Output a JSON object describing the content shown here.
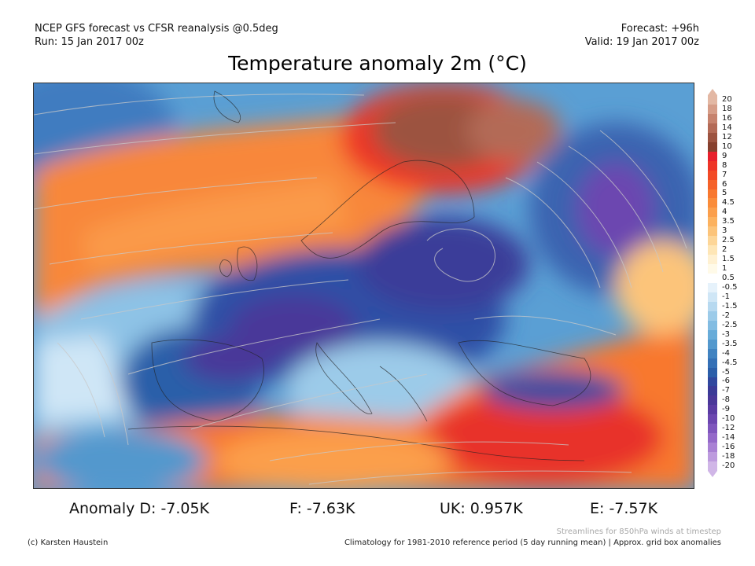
{
  "header": {
    "line1_left": "NCEP GFS forecast vs CFSR reanalysis @0.5deg",
    "line2_left": "Run: 15 Jan 2017 00z",
    "line1_right": "Forecast: +96h",
    "line2_right": "Valid: 19 Jan 2017 00z"
  },
  "title": "Temperature anomaly 2m (°C)",
  "colorbar": {
    "labels": [
      "20",
      "18",
      "16",
      "14",
      "12",
      "10",
      "9",
      "8",
      "7",
      "6",
      "5",
      "4.5",
      "4",
      "3.5",
      "3",
      "2.5",
      "2",
      "1.5",
      "1",
      "0.5",
      "-0.5",
      "-1",
      "-1.5",
      "-2",
      "-2.5",
      "-3",
      "-3.5",
      "-4",
      "-4.5",
      "-5",
      "-6",
      "-7",
      "-8",
      "-9",
      "-10",
      "-12",
      "-14",
      "-16",
      "-18",
      "-20"
    ],
    "colors": [
      "#e3b8a4",
      "#d69d88",
      "#c6826d",
      "#b36a56",
      "#9c5340",
      "#86402e",
      "#e8202c",
      "#ee3427",
      "#f24a26",
      "#f56229",
      "#f8782f",
      "#fa8c3a",
      "#fb9f4c",
      "#fcb25f",
      "#fcc47a",
      "#fdd698",
      "#fee6b6",
      "#fff1d2",
      "#fffae8",
      "#ffffff",
      "#e6f2fb",
      "#cfe6f6",
      "#b7d9f0",
      "#9ccbe9",
      "#82bce2",
      "#68acd9",
      "#5398cd",
      "#4183c1",
      "#3470b6",
      "#2b5ea9",
      "#30479e",
      "#3b3a97",
      "#4a3799",
      "#5a3ba3",
      "#6c46b0",
      "#7f56bd",
      "#9469c9",
      "#a981d4",
      "#bd9bde",
      "#d0b6e7"
    ]
  },
  "stats": {
    "d": "Anomaly D: -7.05K",
    "f": "F: -7.63K",
    "uk": "UK: 0.957K",
    "e": "E: -7.57K"
  },
  "footer": {
    "copyright": "(c) Karsten Haustein",
    "streamlines": "Streamlines for 850hPa winds at timestep",
    "climatology": "Climatology for 1981-2010 reference period (5 day running mean) | Approx. grid box anomalies"
  }
}
